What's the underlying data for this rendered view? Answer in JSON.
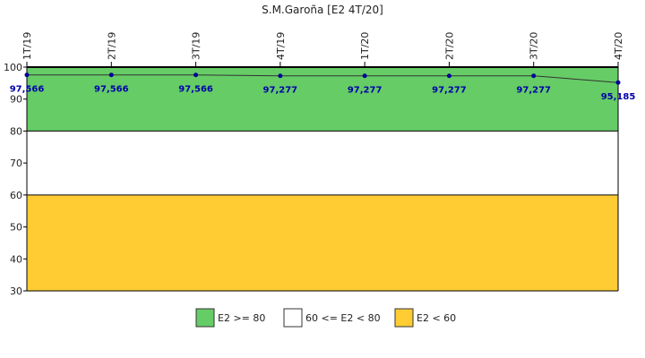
{
  "chart_data": {
    "type": "line",
    "title": "S.M.Garoña [E2 4T/20]",
    "xlabel": "",
    "ylabel": "",
    "categories": [
      "1T/19",
      "2T/19",
      "3T/19",
      "4T/19",
      "1T/20",
      "2T/20",
      "3T/20",
      "4T/20"
    ],
    "series": [
      {
        "values": [
          97.566,
          97.566,
          97.566,
          97.277,
          97.277,
          97.277,
          97.277,
          95.185
        ],
        "labels": [
          "97,566",
          "97,566",
          "97,566",
          "97,277",
          "97,277",
          "97,277",
          "97,277",
          "95,185"
        ],
        "color": "#000099"
      }
    ],
    "ylim": [
      30,
      100
    ],
    "yticks": [
      "30",
      "40",
      "50",
      "60",
      "70",
      "80",
      "90",
      "100"
    ],
    "bands": [
      {
        "from": 80,
        "to": 100,
        "color": "#66cc66"
      },
      {
        "from": 60,
        "to": 80,
        "color": "#ffffff"
      },
      {
        "from": 30,
        "to": 60,
        "color": "#ffcc33"
      }
    ],
    "legend": {
      "placement": "bottom",
      "items": [
        {
          "label": "E2 >= 80",
          "color": "#66cc66"
        },
        {
          "label": "60 <= E2 < 80",
          "color": "#ffffff"
        },
        {
          "label": "E2 < 60",
          "color": "#ffcc33"
        }
      ]
    },
    "grid": false
  }
}
